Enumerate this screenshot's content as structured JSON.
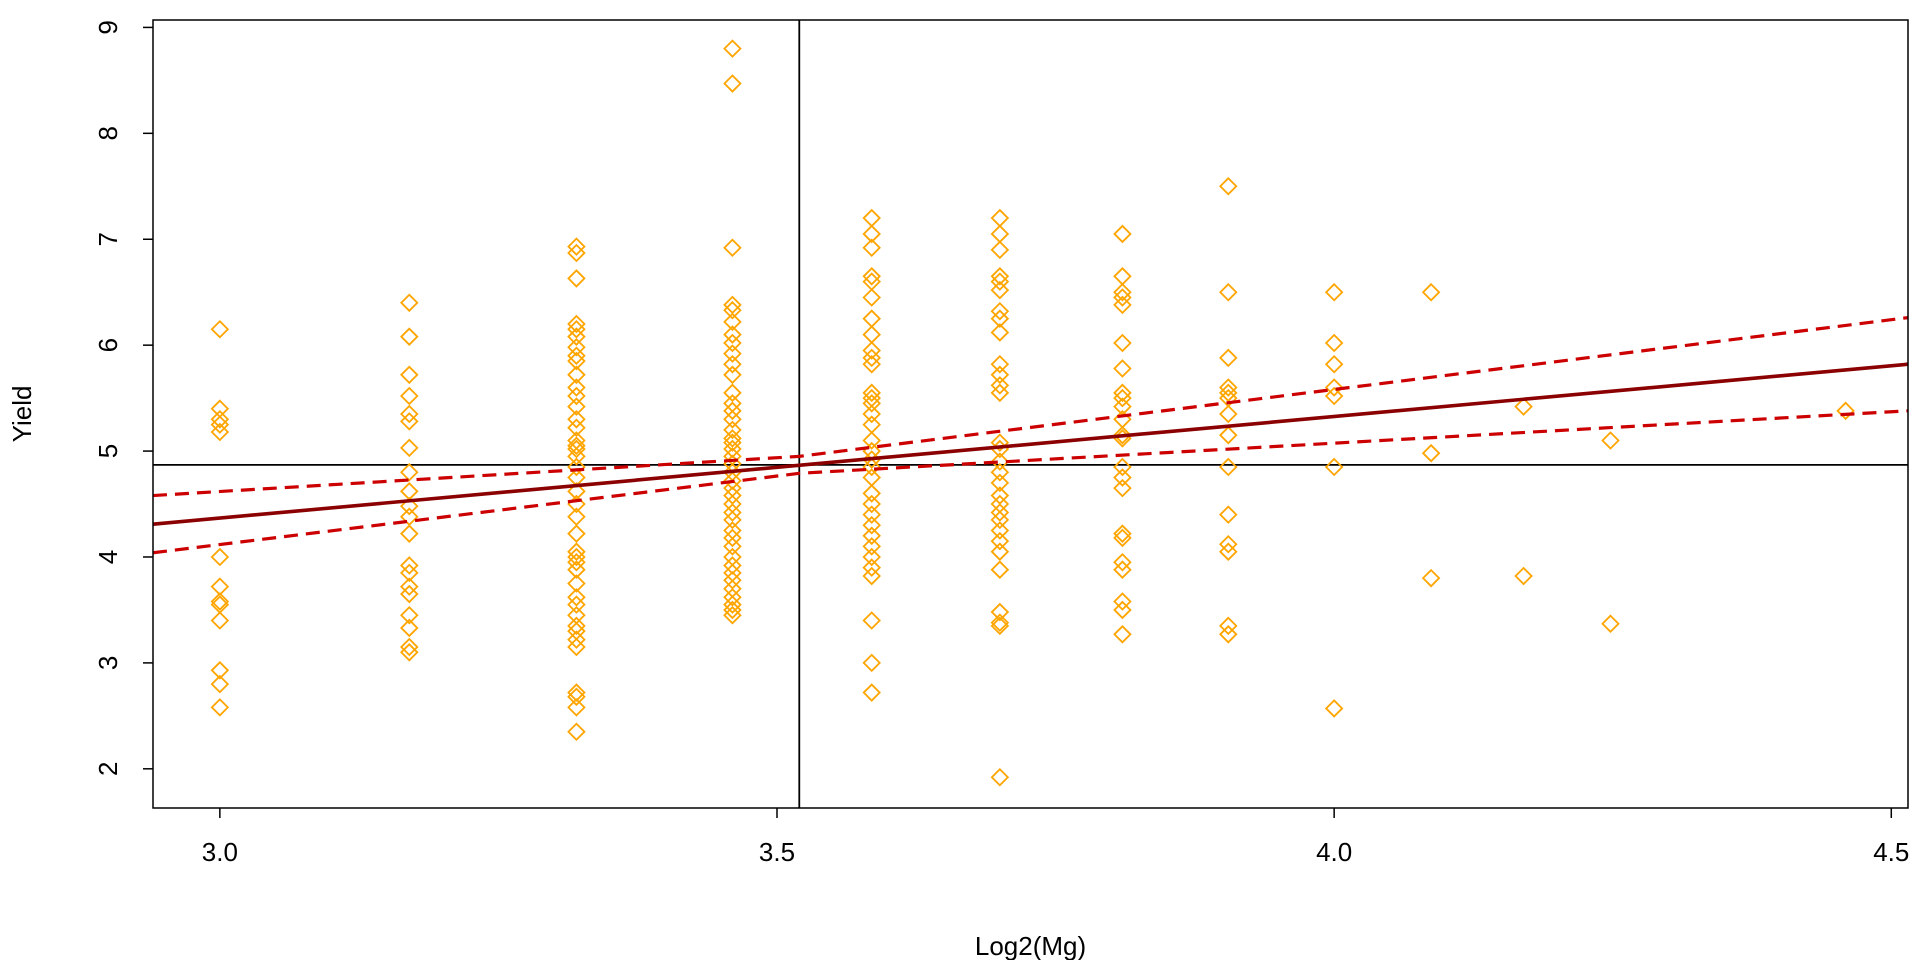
{
  "chart_data": {
    "type": "scatter",
    "title": "",
    "xlabel": "Log2(Mg)",
    "ylabel": "Yield",
    "xlim": [
      2.94,
      4.515
    ],
    "ylim": [
      1.63,
      9.07
    ],
    "xticks": [
      3.0,
      3.5,
      4.0,
      4.5
    ],
    "xtick_labels": [
      "3.0",
      "3.5",
      "4.0",
      "4.5"
    ],
    "yticks": [
      2,
      3,
      4,
      5,
      6,
      7,
      8,
      9
    ],
    "ytick_labels": [
      "2",
      "3",
      "4",
      "5",
      "6",
      "7",
      "8",
      "9"
    ],
    "grid": false,
    "marker": "open-diamond",
    "colors": {
      "points": "#FFA500",
      "fit_line": "#8B0000",
      "confidence_band": "#CC0000",
      "reference_lines": "#000000"
    },
    "reference_lines": {
      "vertical_x": 3.52,
      "horizontal_y": 4.87
    },
    "fit_line": {
      "x": [
        2.94,
        4.515
      ],
      "y": [
        4.31,
        5.82
      ]
    },
    "confidence_upper": {
      "x": [
        2.94,
        3.52,
        4.515
      ],
      "y": [
        4.58,
        4.95,
        6.26
      ]
    },
    "confidence_lower": {
      "x": [
        2.94,
        3.52,
        4.515
      ],
      "y": [
        4.04,
        4.79,
        5.38
      ]
    },
    "points": [
      {
        "x": 3.0,
        "y": [
          6.15,
          5.4,
          5.3,
          5.25,
          5.18,
          4.0,
          3.72,
          3.58,
          3.55,
          3.4,
          2.93,
          2.8,
          2.58
        ]
      },
      {
        "x": 3.17,
        "y": [
          6.4,
          6.08,
          5.72,
          5.52,
          5.35,
          5.28,
          5.03,
          4.8,
          4.62,
          4.48,
          4.38,
          4.22,
          3.92,
          3.85,
          3.72,
          3.65,
          3.45,
          3.33,
          3.15,
          3.1
        ]
      },
      {
        "x": 3.32,
        "y": [
          6.93,
          6.87,
          6.63,
          6.2,
          6.15,
          6.08,
          5.98,
          5.9,
          5.85,
          5.72,
          5.6,
          5.52,
          5.42,
          5.3,
          5.22,
          5.1,
          5.05,
          5.02,
          4.95,
          4.85,
          4.75,
          4.62,
          4.5,
          4.38,
          4.22,
          4.05,
          4.0,
          3.95,
          3.88,
          3.75,
          3.62,
          3.55,
          3.45,
          3.35,
          3.3,
          3.22,
          3.15,
          2.72,
          2.68,
          2.58,
          2.35
        ]
      },
      {
        "x": 3.46,
        "y": [
          8.8,
          8.47,
          6.92,
          6.38,
          6.33,
          6.22,
          6.1,
          6.02,
          5.92,
          5.82,
          5.72,
          5.55,
          5.45,
          5.38,
          5.3,
          5.2,
          5.12,
          5.08,
          5.02,
          4.95,
          4.88,
          4.8,
          4.72,
          4.65,
          4.58,
          4.5,
          4.42,
          4.35,
          4.25,
          4.18,
          4.1,
          4.0,
          3.92,
          3.85,
          3.78,
          3.7,
          3.62,
          3.55,
          3.5,
          3.45
        ]
      },
      {
        "x": 3.585,
        "y": [
          7.2,
          7.05,
          6.92,
          6.65,
          6.6,
          6.45,
          6.25,
          6.1,
          5.95,
          5.88,
          5.82,
          5.55,
          5.5,
          5.45,
          5.35,
          5.25,
          5.1,
          5.0,
          4.92,
          4.85,
          4.75,
          4.6,
          4.5,
          4.4,
          4.3,
          4.2,
          4.1,
          4.0,
          3.9,
          3.82,
          3.4,
          3.0,
          2.72
        ]
      },
      {
        "x": 3.7,
        "y": [
          7.2,
          7.05,
          6.9,
          6.65,
          6.6,
          6.52,
          6.32,
          6.25,
          6.12,
          5.82,
          5.72,
          5.62,
          5.55,
          5.08,
          5.02,
          4.9,
          4.8,
          4.7,
          4.58,
          4.5,
          4.42,
          4.35,
          4.25,
          4.15,
          4.05,
          3.88,
          3.48,
          3.38,
          3.35,
          1.92
        ]
      },
      {
        "x": 3.81,
        "y": [
          7.05,
          6.65,
          6.5,
          6.45,
          6.38,
          6.02,
          5.78,
          5.55,
          5.5,
          5.42,
          5.3,
          5.15,
          5.12,
          4.85,
          4.75,
          4.65,
          4.22,
          4.18,
          3.95,
          3.88,
          3.58,
          3.5,
          3.27
        ]
      },
      {
        "x": 3.905,
        "y": [
          7.5,
          6.5,
          5.88,
          5.6,
          5.55,
          5.5,
          5.35,
          5.15,
          4.85,
          4.4,
          4.12,
          4.05,
          3.35,
          3.27
        ]
      },
      {
        "x": 4.0,
        "y": [
          6.5,
          6.02,
          5.82,
          5.6,
          5.52,
          4.85,
          2.57
        ]
      },
      {
        "x": 4.087,
        "y": [
          6.5,
          4.98,
          3.8
        ]
      },
      {
        "x": 4.17,
        "y": [
          5.42,
          3.82
        ]
      },
      {
        "x": 4.248,
        "y": [
          5.1,
          3.37
        ]
      },
      {
        "x": 4.459,
        "y": [
          5.38
        ]
      }
    ]
  }
}
